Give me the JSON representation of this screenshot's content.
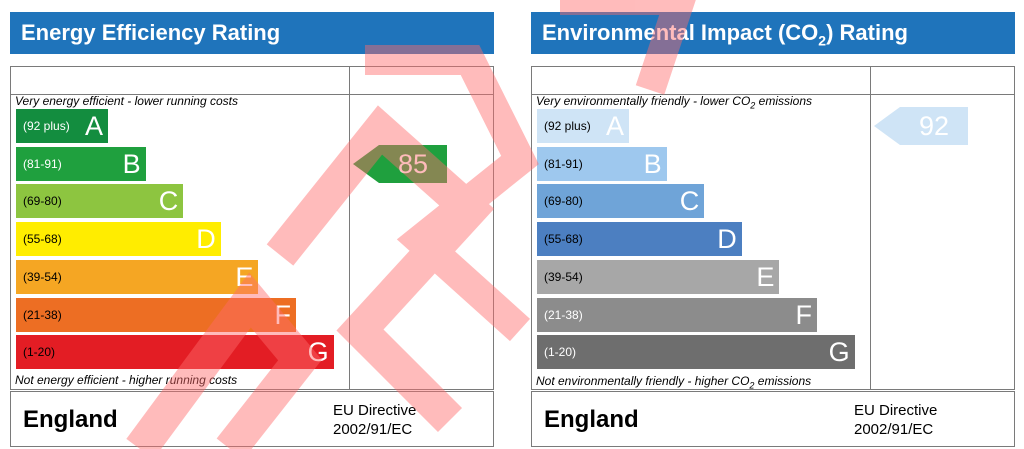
{
  "chart_data": [
    {
      "type": "bar",
      "title": "Energy Efficiency Rating",
      "top_caption": "Very energy efficient - lower running costs",
      "bottom_caption": "Not energy efficient - higher running costs",
      "bands": [
        {
          "range": "(92 plus)",
          "letter": "A",
          "color": "#138d3f",
          "text_color": "#ffffff"
        },
        {
          "range": "(81-91)",
          "letter": "B",
          "color": "#1fa03e",
          "text_color": "#ffffff"
        },
        {
          "range": "(69-80)",
          "letter": "C",
          "color": "#8dc540",
          "text_color": "#000000"
        },
        {
          "range": "(55-68)",
          "letter": "D",
          "color": "#ffed00",
          "text_color": "#000000"
        },
        {
          "range": "(39-54)",
          "letter": "E",
          "color": "#f5a623",
          "text_color": "#000000"
        },
        {
          "range": "(21-38)",
          "letter": "F",
          "color": "#ed6e23",
          "text_color": "#000000"
        },
        {
          "range": "(1-20)",
          "letter": "G",
          "color": "#e31d24",
          "text_color": "#000000"
        }
      ],
      "rating": {
        "value": 85,
        "label": "85",
        "band": "B",
        "color": "#1fa03e"
      },
      "country": "England",
      "directive_line1": "EU Directive",
      "directive_line2": "2002/91/EC"
    },
    {
      "type": "bar",
      "title_prefix": "Environmental Impact (CO",
      "title_sub": "2",
      "title_suffix": ") Rating",
      "top_caption_prefix": "Very environmentally friendly - lower CO",
      "top_caption_sub": "2",
      "top_caption_suffix": " emissions",
      "bottom_caption_prefix": "Not environmentally friendly - higher CO",
      "bottom_caption_sub": "2",
      "bottom_caption_suffix": " emissions",
      "bands": [
        {
          "range": "(92 plus)",
          "letter": "A",
          "color": "#cfe4f6",
          "text_color": "#000000"
        },
        {
          "range": "(81-91)",
          "letter": "B",
          "color": "#9ec8ee",
          "text_color": "#000000"
        },
        {
          "range": "(69-80)",
          "letter": "C",
          "color": "#6fa4d8",
          "text_color": "#000000"
        },
        {
          "range": "(55-68)",
          "letter": "D",
          "color": "#4c7fc1",
          "text_color": "#000000"
        },
        {
          "range": "(39-54)",
          "letter": "E",
          "color": "#a7a7a7",
          "text_color": "#000000"
        },
        {
          "range": "(21-38)",
          "letter": "F",
          "color": "#8c8c8c",
          "text_color": "#ffffff"
        },
        {
          "range": "(1-20)",
          "letter": "G",
          "color": "#6e6e6e",
          "text_color": "#ffffff"
        }
      ],
      "rating": {
        "value": 92,
        "label": "92",
        "band": "A",
        "color": "#cfe4f6"
      },
      "country": "England",
      "directive_line1": "EU Directive",
      "directive_line2": "2002/91/EC"
    }
  ],
  "colors": {
    "header": "#1f74bb",
    "border": "#7a7a7a",
    "watermark": "#ff6b6b"
  }
}
